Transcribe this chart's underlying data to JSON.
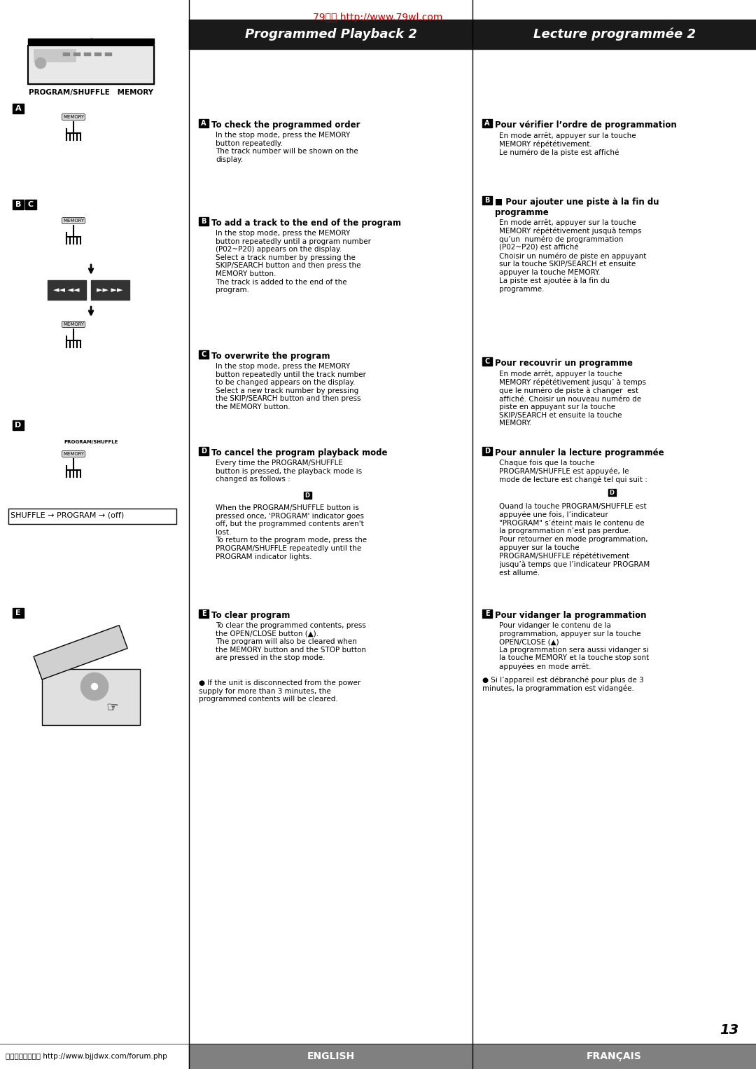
{
  "page_width": 10.8,
  "page_height": 15.26,
  "bg_color": "#ffffff",
  "header_url": "79网络 http://www.79wl.com",
  "header_url_color": "#cc0000",
  "title_left": "Programmed Playback 2",
  "title_right": "Lecture programmée 2",
  "title_bg": "#1a1a1a",
  "title_text_color": "#ffffff",
  "col_divider_color": "#000000",
  "footer_left_text": "家电维修技术论坛 http://www.bjjdwx.com/forum.php",
  "footer_left_color": "#000000",
  "footer_english": "ENGLISH",
  "footer_french": "FRANÇAIS",
  "footer_bg": "#808080",
  "footer_text_color": "#ffffff",
  "page_number": "13",
  "left_col_label": "PROGRAM/SHUFFLE   MEMORY",
  "section_A_title_en": "■ To check the programmed order",
  "section_A_body_en": "In the stop mode, press the MEMORY\nbutton repeatedly.\nThe track number will be shown on the\ndisplay.",
  "section_B_title_en": "■ To add a track to the end of the program",
  "section_B_body_en": "In the stop mode, press the MEMORY\nbutton repeatedly until a program number\n(P02~P20) appears on the display.\nSelect a track number by pressing the\nSKIP/SEARCH button and then press the\nMEMORY button.\nThe track is added to the end of the\nprogram.",
  "section_C_title_en": "■ To overwrite the program",
  "section_C_body_en": "In the stop mode, press the MEMORY\nbutton repeatedly until the track number\nto be changed appears on the display.\nSelect a new track number by pressing\nthe SKIP/SEARCH button and then press\nthe MEMORY button.",
  "section_D_title_en": "■ To cancel the program playback mode",
  "section_D_body_en": "Every time the PROGRAM/SHUFFLE\nbutton is pressed, the playback mode is\nchanged as follows :",
  "section_D_body2_en": "When the PROGRAM/SHUFFLE button is\npressed once, 'PROGRAM' indicator goes\noff, but the programmed contents aren't\nlost.\nTo return to the program mode, press the\nPROGRAM/SHUFFLE repeatedly until the\nPROGRAM indicator lights.",
  "section_E_title_en": "■ To clear program",
  "section_E_body_en": "To clear the programmed contents, press\nthe OPEN/CLOSE button (▲).\nThe program will also be cleared when\nthe MEMORY button and the STOP button\nare pressed in the stop mode.",
  "section_E_body2_en": "● If the unit is disconnected from the power\nsupply for more than 3 minutes, the\nprogrammed contents will be cleared.",
  "section_A_title_fr": "■ Pour vérifier l’ordre de programmation",
  "section_A_body_fr": "En mode arrêt, appuyer sur la touche\nMEMORY répététivement.\nLe numéro de la piste est affiché",
  "section_B_title_fr": "■ Pour ajouter une piste à la fin du\nprogramme",
  "section_B_body_fr": "En mode arrêt, appuyer sur la touche\nMEMORY répététivement jusquà temps\nqu’un  numéro de programmation\n(P02~P20) est affiché\nChoisir un numéro de piste en appuyant\nsur la touche SKIP/SEARCH et ensuite\nappuyer la touche MEMORY.\nLa piste est ajoutée à la fin du\nprogramme.",
  "section_C_title_fr": "■ Pour recouvrir un programme",
  "section_C_body_fr": "En mode arrêt, appuyer la touche\nMEMORY répététivement jusqu’ à temps\nque le numéro de piste à changer  est\naffiché. Choisir un nouveau numéro de\npiste en appuyant sur la touche\nSKIP/SEARCH et ensuite la touche\nMEMORY.",
  "section_D_title_fr": "■ Pour annuler la lecture programmée",
  "section_D_body_fr": "Chaque fois que la touche\nPROGRAM/SHUFFLE est appuyée, le\nmode de lecture est changé tel qui suit :",
  "section_D_body2_fr": "Quand la touche PROGRAM/SHUFFLE est\nappuyée une fois, l’indicateur\n\"PROGRAM\" s’éteint mais le contenu de\nla programmation n’est pas perdue.\nPour retourner en mode programmation,\nappuyer sur la touche\nPROGRAM/SHUFFLE répététivement\njusqu’à temps que l’indicateur PROGRAM\nest allumé.",
  "section_E_title_fr": "■ Pour vidanger la programmation",
  "section_E_body_fr": "Pour vidanger le contenu de la\nprogrammation, appuyer sur la touche\nOPEN/CLOSE (▲)\nLa programmation sera aussi vidanger si\nla touche MEMORY et la touche stop sont\nappuyées en mode arrêt.",
  "section_E_body2_fr": "● Si l’appareil est débranché pour plus de 3\nminutes, la programmation est vidangée.",
  "shuffle_program_line": "SHUFFLE → PROGRAM → (off)"
}
